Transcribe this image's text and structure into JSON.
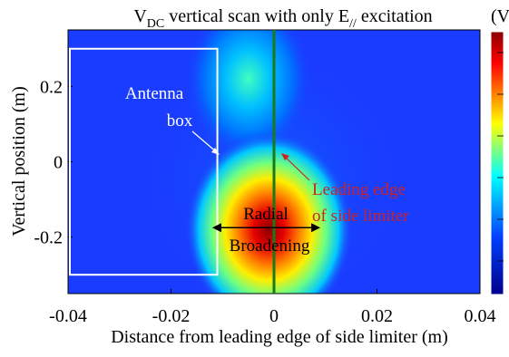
{
  "colors": {
    "axis": "#000000",
    "antenna_box": "#ffffff",
    "limiter_line": "#1a7a1a",
    "leading_edge_label": "#cc2222",
    "colorbar_top": "#8b0000",
    "colorbar_bottom": "#00008b"
  },
  "chart_data": {
    "type": "heatmap",
    "title": {
      "main": "V",
      "sub": "DC",
      "mid": " vertical scan with only E",
      "sub2": "//",
      "end": " excitation"
    },
    "colorbar_unit_label": "(V",
    "xlabel": "Distance from leading edge of side limiter (m)",
    "ylabel": "Vertical position (m)",
    "xlim": [
      -0.04,
      0.04
    ],
    "ylim": [
      -0.35,
      0.35
    ],
    "x_ticks": [
      {
        "value": -0.04,
        "label": "-0.04"
      },
      {
        "value": -0.02,
        "label": "-0.02"
      },
      {
        "value": 0,
        "label": "0"
      },
      {
        "value": 0.02,
        "label": "0.02"
      },
      {
        "value": 0.04,
        "label": "0.04"
      }
    ],
    "y_ticks": [
      {
        "value": 0.2,
        "label": "0.2"
      },
      {
        "value": 0,
        "label": "0"
      },
      {
        "value": -0.2,
        "label": "-0.2"
      }
    ],
    "colormap": "jet",
    "hotspots": [
      {
        "x": -0.001,
        "y": -0.18,
        "intensity": 1.0
      },
      {
        "x": -0.005,
        "y": 0.22,
        "intensity": 0.45
      }
    ],
    "overlays": {
      "antenna_box": {
        "x0": -0.04,
        "x1": -0.011,
        "y0": -0.3,
        "y1": 0.3
      },
      "limiter_line_x": 0,
      "radial_broadening_arrow": {
        "x0": -0.012,
        "x1": 0.009,
        "y": -0.175
      }
    },
    "annotations": {
      "antenna_box_line1": "Antenna",
      "antenna_box_line2": "box",
      "leading_edge_line1": "Leading edge",
      "leading_edge_line2": "of side limiter",
      "broadening_line1": "Radial",
      "broadening_line2": "Broadening"
    }
  }
}
